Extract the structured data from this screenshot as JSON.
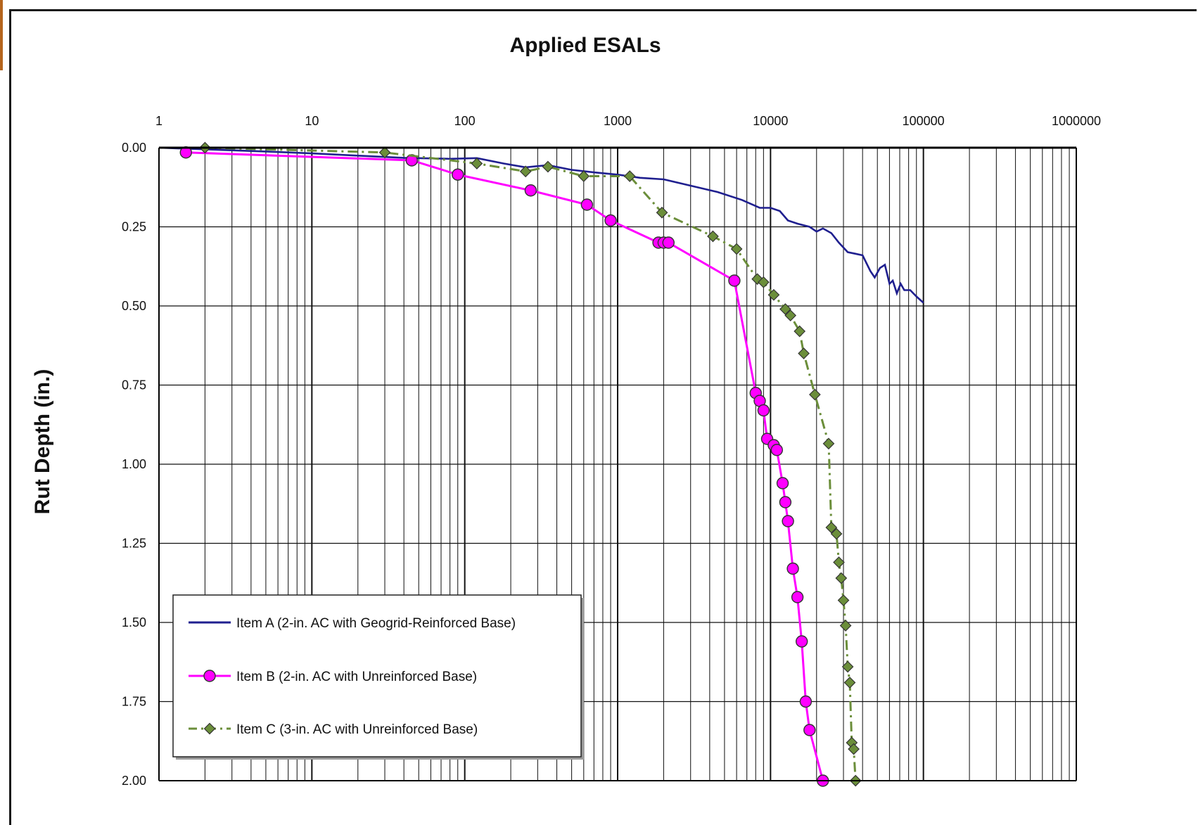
{
  "chart_data": {
    "type": "line",
    "title": "Applied ESALs",
    "xlabel": "",
    "ylabel": "Rut Depth (in.)",
    "xscale": "log",
    "xlim": [
      1,
      1000000
    ],
    "ylim": [
      0,
      2
    ],
    "y_inverted": true,
    "grid": true,
    "legend_position": "bottom-left",
    "x_ticks": [
      "1",
      "10",
      "100",
      "1000",
      "10000",
      "100000",
      "1000000"
    ],
    "y_ticks": [
      "0.00",
      "0.25",
      "0.50",
      "0.75",
      "1.00",
      "1.25",
      "1.50",
      "1.75",
      "2.00"
    ],
    "series": [
      {
        "name": "Item A (2-in. AC with Geogrid-Reinforced Base)",
        "color": "#1f1f8f",
        "marker": "none",
        "line": "solid",
        "points": [
          [
            1,
            0.0
          ],
          [
            2,
            0.005
          ],
          [
            5,
            0.012
          ],
          [
            10,
            0.018
          ],
          [
            20,
            0.025
          ],
          [
            40,
            0.032
          ],
          [
            80,
            0.035
          ],
          [
            120,
            0.033
          ],
          [
            180,
            0.05
          ],
          [
            250,
            0.062
          ],
          [
            350,
            0.055
          ],
          [
            500,
            0.07
          ],
          [
            700,
            0.078
          ],
          [
            1000,
            0.085
          ],
          [
            1400,
            0.095
          ],
          [
            2000,
            0.1
          ],
          [
            3000,
            0.12
          ],
          [
            4500,
            0.14
          ],
          [
            6500,
            0.165
          ],
          [
            8500,
            0.19
          ],
          [
            10000,
            0.19
          ],
          [
            11500,
            0.2
          ],
          [
            13000,
            0.23
          ],
          [
            15000,
            0.24
          ],
          [
            18000,
            0.25
          ],
          [
            20000,
            0.265
          ],
          [
            22000,
            0.255
          ],
          [
            25000,
            0.27
          ],
          [
            28000,
            0.3
          ],
          [
            32000,
            0.33
          ],
          [
            36000,
            0.335
          ],
          [
            40000,
            0.34
          ],
          [
            45000,
            0.39
          ],
          [
            48000,
            0.41
          ],
          [
            52000,
            0.38
          ],
          [
            56000,
            0.37
          ],
          [
            60000,
            0.43
          ],
          [
            63000,
            0.42
          ],
          [
            67000,
            0.46
          ],
          [
            71000,
            0.43
          ],
          [
            75000,
            0.45
          ],
          [
            82000,
            0.45
          ],
          [
            90000,
            0.47
          ],
          [
            100000,
            0.49
          ]
        ]
      },
      {
        "name": "Item B (2-in. AC with Unreinforced Base)",
        "color": "#ff00ff",
        "marker": "circle",
        "line": "solid",
        "points": [
          [
            1.5,
            0.015
          ],
          [
            45,
            0.04
          ],
          [
            90,
            0.085
          ],
          [
            270,
            0.135
          ],
          [
            630,
            0.18
          ],
          [
            900,
            0.23
          ],
          [
            1850,
            0.3
          ],
          [
            2000,
            0.3
          ],
          [
            2150,
            0.3
          ],
          [
            5800,
            0.42
          ],
          [
            8000,
            0.775
          ],
          [
            8500,
            0.8
          ],
          [
            9000,
            0.83
          ],
          [
            9500,
            0.92
          ],
          [
            10500,
            0.94
          ],
          [
            11000,
            0.955
          ],
          [
            12000,
            1.06
          ],
          [
            12500,
            1.12
          ],
          [
            13000,
            1.18
          ],
          [
            14000,
            1.33
          ],
          [
            15000,
            1.42
          ],
          [
            16000,
            1.56
          ],
          [
            17000,
            1.75
          ],
          [
            18000,
            1.84
          ],
          [
            22000,
            2.0
          ]
        ]
      },
      {
        "name": "Item C (3-in. AC with Unreinforced Base)",
        "color": "#6b8e3a",
        "marker": "diamond",
        "line": "dash-dot",
        "points": [
          [
            2,
            0.0
          ],
          [
            30,
            0.015
          ],
          [
            120,
            0.05
          ],
          [
            250,
            0.075
          ],
          [
            350,
            0.06
          ],
          [
            600,
            0.09
          ],
          [
            1200,
            0.09
          ],
          [
            1950,
            0.205
          ],
          [
            4200,
            0.28
          ],
          [
            6000,
            0.32
          ],
          [
            8200,
            0.415
          ],
          [
            9000,
            0.425
          ],
          [
            10500,
            0.465
          ],
          [
            12500,
            0.51
          ],
          [
            13500,
            0.53
          ],
          [
            15500,
            0.58
          ],
          [
            16500,
            0.65
          ],
          [
            19500,
            0.78
          ],
          [
            24000,
            0.935
          ],
          [
            25000,
            1.2
          ],
          [
            27000,
            1.22
          ],
          [
            28000,
            1.31
          ],
          [
            29000,
            1.36
          ],
          [
            30000,
            1.43
          ],
          [
            31000,
            1.51
          ],
          [
            32000,
            1.64
          ],
          [
            33000,
            1.69
          ],
          [
            34000,
            1.88
          ],
          [
            35000,
            1.9
          ],
          [
            36000,
            2.0
          ]
        ]
      }
    ]
  }
}
